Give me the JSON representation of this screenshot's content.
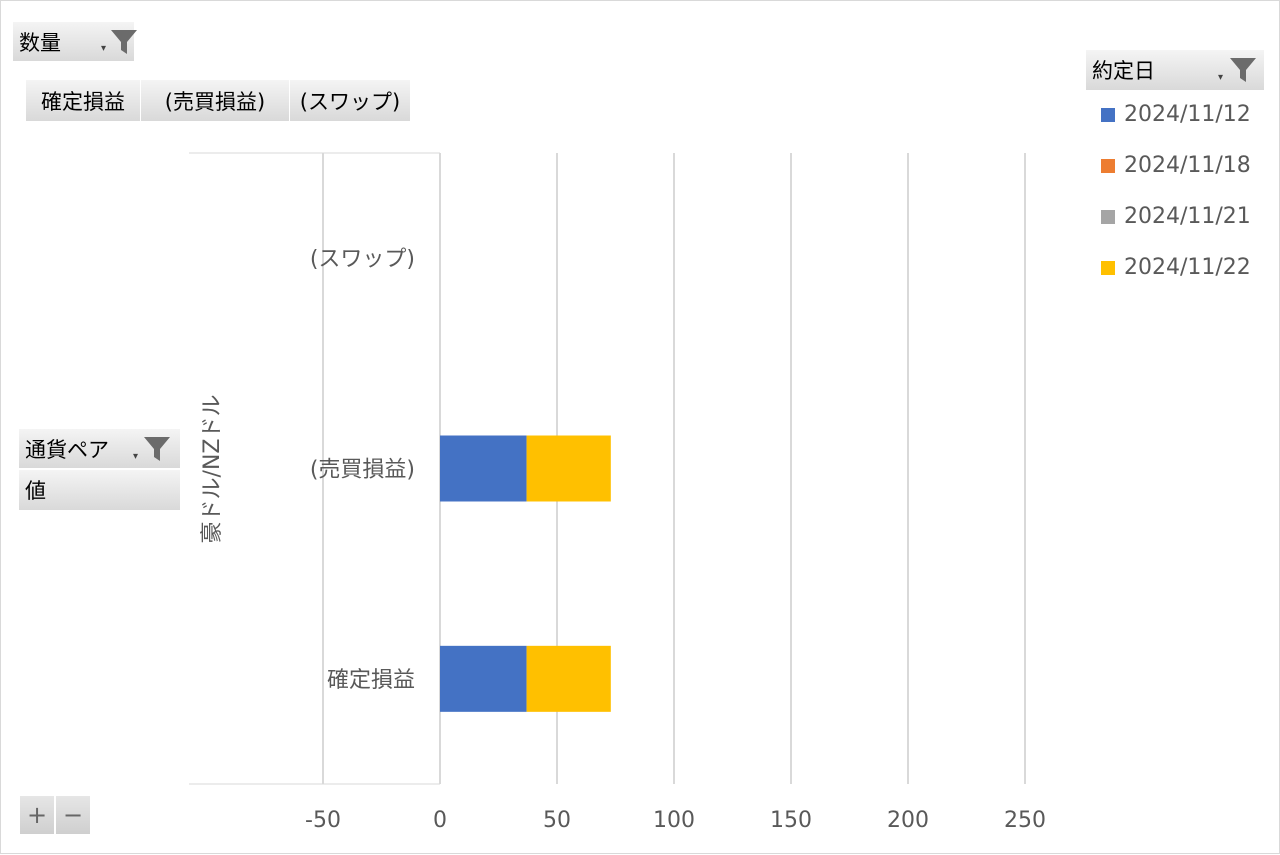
{
  "filters": {
    "value_field": "数量",
    "legend_field": "約定日",
    "axis_field": "通貨ペア",
    "values_label": "値"
  },
  "field_buttons": [
    "確定損益",
    "(売買損益)",
    "(スワップ)"
  ],
  "expand_button": "+",
  "collapse_button": "−",
  "chart_data": {
    "type": "bar",
    "orientation": "horizontal",
    "stacked": true,
    "group_label": "豪ドル/NZドル",
    "categories": [
      "(スワップ)",
      "(売買損益)",
      "確定損益"
    ],
    "series": [
      {
        "name": "2024/11/12",
        "color": "#4472C4",
        "values": [
          0,
          37,
          37
        ]
      },
      {
        "name": "2024/11/18",
        "color": "#ED7D31",
        "values": [
          0,
          0,
          0
        ]
      },
      {
        "name": "2024/11/21",
        "color": "#A5A5A5",
        "values": [
          0,
          0,
          0
        ]
      },
      {
        "name": "2024/11/22",
        "color": "#FFC000",
        "values": [
          0,
          36,
          36
        ]
      }
    ],
    "xlim": [
      -100,
      250
    ],
    "x_ticks": [
      -50,
      0,
      50,
      100,
      150,
      200,
      250
    ],
    "legend_position": "right",
    "grid": true
  }
}
